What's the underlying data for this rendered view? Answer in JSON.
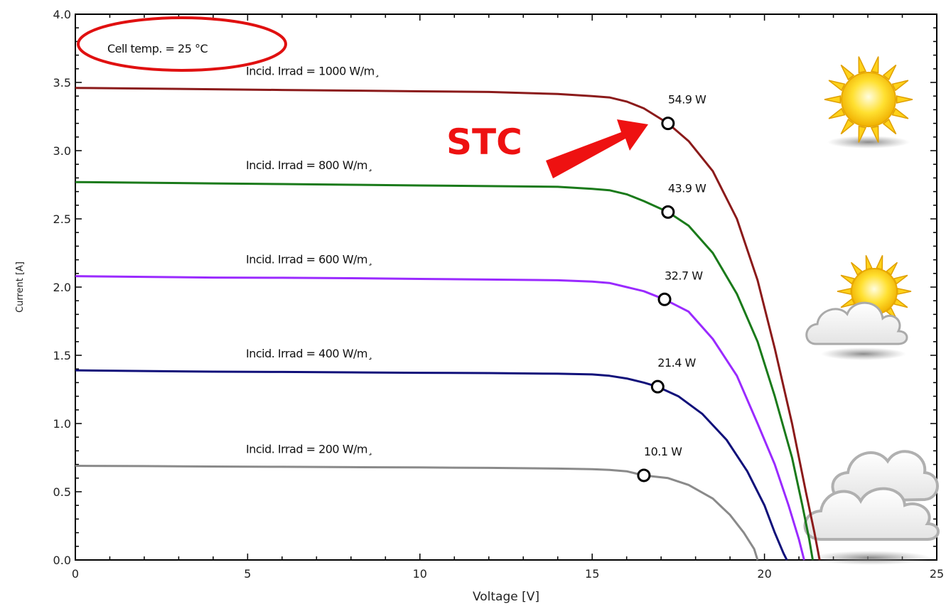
{
  "chart_data": {
    "type": "line",
    "xlabel": "Voltage [V]",
    "ylabel": "Current [A]",
    "xlim": [
      0,
      25
    ],
    "ylim": [
      0,
      4.0
    ],
    "x_ticks": [
      "0",
      "5",
      "10",
      "15",
      "20",
      "25"
    ],
    "y_ticks": [
      "0.0",
      "0.5",
      "1.0",
      "1.5",
      "2.0",
      "2.5",
      "3.0",
      "3.5",
      "4.0"
    ],
    "x_tick_values": [
      0,
      5,
      10,
      15,
      20,
      25
    ],
    "y_tick_values": [
      0,
      0.5,
      1.0,
      1.5,
      2.0,
      2.5,
      3.0,
      3.5,
      4.0
    ],
    "cell_temp_label": "Cell temp. =   25 °C",
    "stc_label": "STC",
    "series": [
      {
        "name": "Incid. Irrad = 1000 W/m¸",
        "color": "#8b1a1a",
        "points": [
          [
            0,
            3.46
          ],
          [
            2,
            3.455
          ],
          [
            4,
            3.45
          ],
          [
            6,
            3.445
          ],
          [
            8,
            3.44
          ],
          [
            10,
            3.435
          ],
          [
            12,
            3.43
          ],
          [
            14,
            3.415
          ],
          [
            15,
            3.4
          ],
          [
            15.5,
            3.39
          ],
          [
            16,
            3.36
          ],
          [
            16.5,
            3.31
          ],
          [
            17.2,
            3.2
          ],
          [
            17.8,
            3.07
          ],
          [
            18.5,
            2.85
          ],
          [
            19.2,
            2.5
          ],
          [
            19.8,
            2.05
          ],
          [
            20.3,
            1.55
          ],
          [
            20.8,
            1.0
          ],
          [
            21.2,
            0.5
          ],
          [
            21.45,
            0.2
          ],
          [
            21.6,
            0.0
          ]
        ],
        "mpp": {
          "v": 17.2,
          "i": 3.2,
          "label": "54.9 W"
        }
      },
      {
        "name": "Incid. Irrad =  800 W/m¸",
        "color": "#1a7a1a",
        "points": [
          [
            0,
            2.77
          ],
          [
            2,
            2.765
          ],
          [
            4,
            2.76
          ],
          [
            6,
            2.755
          ],
          [
            8,
            2.75
          ],
          [
            10,
            2.745
          ],
          [
            12,
            2.74
          ],
          [
            14,
            2.735
          ],
          [
            15,
            2.72
          ],
          [
            15.5,
            2.71
          ],
          [
            16,
            2.68
          ],
          [
            16.5,
            2.63
          ],
          [
            17.2,
            2.55
          ],
          [
            17.8,
            2.45
          ],
          [
            18.5,
            2.25
          ],
          [
            19.2,
            1.95
          ],
          [
            19.8,
            1.6
          ],
          [
            20.3,
            1.2
          ],
          [
            20.8,
            0.75
          ],
          [
            21.1,
            0.4
          ],
          [
            21.3,
            0.15
          ],
          [
            21.4,
            0.0
          ]
        ],
        "mpp": {
          "v": 17.2,
          "i": 2.55,
          "label": "43.9 W"
        }
      },
      {
        "name": "Incid. Irrad =  600 W/m¸",
        "color": "#9a2aff",
        "points": [
          [
            0,
            2.08
          ],
          [
            2,
            2.075
          ],
          [
            4,
            2.07
          ],
          [
            6,
            2.068
          ],
          [
            8,
            2.065
          ],
          [
            10,
            2.06
          ],
          [
            12,
            2.055
          ],
          [
            14,
            2.05
          ],
          [
            15,
            2.04
          ],
          [
            15.5,
            2.03
          ],
          [
            16,
            2.0
          ],
          [
            16.5,
            1.97
          ],
          [
            17.1,
            1.91
          ],
          [
            17.8,
            1.82
          ],
          [
            18.5,
            1.62
          ],
          [
            19.2,
            1.35
          ],
          [
            19.8,
            1.0
          ],
          [
            20.3,
            0.7
          ],
          [
            20.7,
            0.4
          ],
          [
            21.0,
            0.15
          ],
          [
            21.15,
            0.0
          ]
        ],
        "mpp": {
          "v": 17.1,
          "i": 1.91,
          "label": "32.7 W"
        }
      },
      {
        "name": "Incid. Irrad =  400 W/m¸",
        "color": "#10107a",
        "points": [
          [
            0,
            1.39
          ],
          [
            2,
            1.385
          ],
          [
            4,
            1.38
          ],
          [
            6,
            1.378
          ],
          [
            8,
            1.375
          ],
          [
            10,
            1.372
          ],
          [
            12,
            1.37
          ],
          [
            14,
            1.365
          ],
          [
            15,
            1.36
          ],
          [
            15.5,
            1.35
          ],
          [
            16,
            1.33
          ],
          [
            16.5,
            1.3
          ],
          [
            16.9,
            1.27
          ],
          [
            17.5,
            1.2
          ],
          [
            18.2,
            1.07
          ],
          [
            18.9,
            0.88
          ],
          [
            19.5,
            0.65
          ],
          [
            20.0,
            0.4
          ],
          [
            20.3,
            0.2
          ],
          [
            20.55,
            0.05
          ],
          [
            20.65,
            0.0
          ]
        ],
        "mpp": {
          "v": 16.9,
          "i": 1.27,
          "label": "21.4 W"
        }
      },
      {
        "name": "Incid. Irrad =  200 W/m¸",
        "color": "#8a8a8a",
        "points": [
          [
            0,
            0.69
          ],
          [
            2,
            0.688
          ],
          [
            4,
            0.685
          ],
          [
            6,
            0.683
          ],
          [
            8,
            0.68
          ],
          [
            10,
            0.678
          ],
          [
            12,
            0.675
          ],
          [
            14,
            0.67
          ],
          [
            15,
            0.665
          ],
          [
            15.5,
            0.66
          ],
          [
            16,
            0.65
          ],
          [
            16.5,
            0.62
          ],
          [
            17.2,
            0.6
          ],
          [
            17.8,
            0.55
          ],
          [
            18.5,
            0.45
          ],
          [
            19.0,
            0.33
          ],
          [
            19.4,
            0.2
          ],
          [
            19.7,
            0.08
          ],
          [
            19.8,
            0.0
          ]
        ],
        "mpp": {
          "v": 16.5,
          "i": 0.62,
          "label": "10.1 W"
        }
      }
    ],
    "icons": [
      "sun-icon",
      "partly-cloudy-icon",
      "cloudy-icon"
    ]
  }
}
